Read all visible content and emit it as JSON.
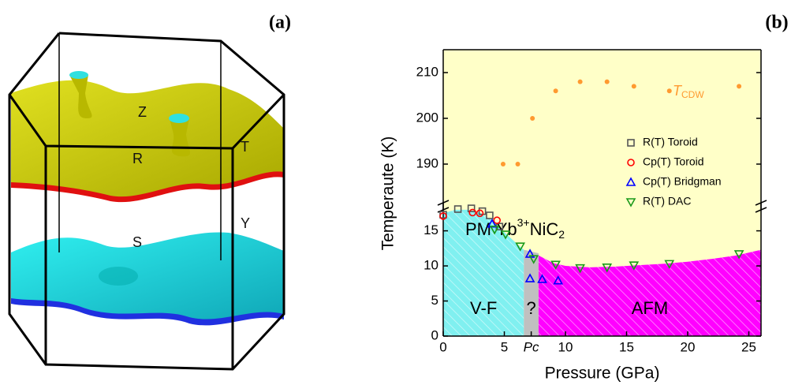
{
  "panel_a": {
    "label": "(a)",
    "points": [
      "Z",
      "R",
      "T",
      "S",
      "Y"
    ]
  },
  "chart_data": {
    "type": "scatter",
    "label": "(b)",
    "x_label": "Pressure (GPa)",
    "y_label": "Temperaute (K)",
    "xlim": [
      0,
      26
    ],
    "xticks": [
      0,
      5,
      {
        "value": 7.2,
        "label": "Pc"
      },
      10,
      15,
      20,
      25
    ],
    "segments": [
      {
        "ylim": [
          0,
          19
        ],
        "yticks": [
          0,
          5,
          10,
          15
        ]
      },
      {
        "ylim": [
          180,
          215
        ],
        "yticks": [
          190,
          200,
          210
        ]
      }
    ],
    "background": "#ffffc8",
    "regions": [
      {
        "label": "V-F",
        "color": "#80f0f0",
        "x": [
          0,
          1,
          2,
          3,
          4,
          5,
          6,
          6.6
        ],
        "top": [
          17.5,
          18,
          18,
          17.6,
          16.5,
          14.8,
          13.2,
          12.3
        ]
      },
      {
        "label": "?",
        "color": "#c0c0c0",
        "x": [
          6.6,
          7.8
        ],
        "top": [
          12.3,
          11.8
        ]
      },
      {
        "label": "AFM",
        "color": "#ff00ff",
        "x": [
          7.8,
          9,
          10,
          12,
          14,
          16,
          18,
          20,
          22,
          24,
          26
        ],
        "top": [
          11.5,
          10.4,
          10,
          9.8,
          9.9,
          10.1,
          10.3,
          10.6,
          11,
          11.5,
          12.3
        ]
      }
    ],
    "phase_label": [
      "PM Yb",
      "3+",
      "NiC",
      "2"
    ],
    "annotation": {
      "text": "T",
      "sub": "CDW",
      "color": "#ff9a30"
    },
    "series": [
      {
        "marker": "dot",
        "color": "#ff9a30",
        "x": [
          4.9,
          6.1,
          7.3,
          9.2,
          11.2,
          13.4,
          15.6,
          18.5,
          24.2
        ],
        "values": [
          190,
          190,
          200,
          206,
          208,
          208,
          207,
          206,
          207
        ]
      },
      {
        "name": "R(T) Toroid",
        "marker": "square",
        "color": "#555555",
        "x": [
          0,
          1.2,
          2.3,
          3.2,
          3.8,
          4.6
        ],
        "values": [
          17.3,
          18.1,
          18.2,
          17.8,
          17.2,
          15.6
        ]
      },
      {
        "name": "Cp(T) Toroid",
        "marker": "circle",
        "color": "#ff0000",
        "x": [
          0,
          2.4,
          3.0,
          4.4
        ],
        "values": [
          17.1,
          17.6,
          17.5,
          16.5
        ]
      },
      {
        "name": "Cp(T) Bridgman",
        "marker": "up",
        "color": "#0000ff",
        "x": [
          4.0,
          7.1,
          7.1,
          8.1,
          9.4
        ],
        "values": [
          16.0,
          11.7,
          8.2,
          8.1,
          7.9
        ]
      },
      {
        "name": "R(T) DAC",
        "marker": "down",
        "color": "#1a9a1a",
        "x": [
          4.2,
          5.1,
          6.3,
          7.4,
          9.2,
          11.2,
          13.4,
          15.6,
          18.5,
          24.2
        ],
        "values": [
          15.2,
          14.5,
          12.8,
          11.0,
          10.2,
          9.7,
          9.8,
          10.1,
          10.3,
          11.7
        ]
      }
    ]
  }
}
